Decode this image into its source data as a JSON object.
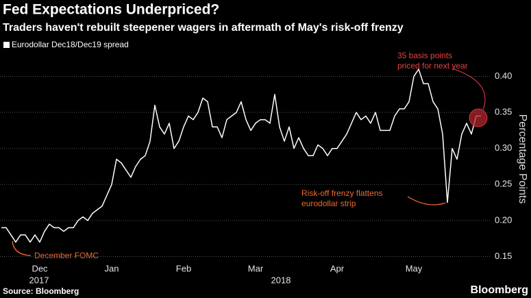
{
  "chart_data": {
    "type": "line",
    "title": "Fed Expectations Underpriced?",
    "subtitle": "Traders haven't rebuilt steepener wagers in aftermath of May's risk-off frenzy",
    "y_axis_label": "Percentage Points",
    "source": "Source: Bloomberg",
    "brand": "Bloomberg",
    "year_labels": [
      "2017",
      "2018"
    ],
    "annotations": [
      "December FOMC",
      "Risk-off frenzy flattens",
      "eurodollar strip",
      "35 basis points",
      "priced for next year"
    ],
    "categories": [
      null,
      null,
      null,
      null,
      null,
      null,
      null,
      null,
      "Dec",
      null,
      null,
      null,
      null,
      null,
      null,
      null,
      null,
      null,
      null,
      null,
      null,
      null,
      null,
      "Jan",
      null,
      null,
      null,
      null,
      null,
      null,
      null,
      null,
      null,
      null,
      null,
      null,
      null,
      null,
      "Feb",
      null,
      null,
      null,
      null,
      null,
      null,
      null,
      null,
      null,
      null,
      null,
      null,
      null,
      null,
      "Mar",
      null,
      null,
      null,
      null,
      null,
      null,
      null,
      null,
      null,
      null,
      null,
      null,
      null,
      null,
      null,
      null,
      "Apr",
      null,
      null,
      null,
      null,
      null,
      null,
      null,
      null,
      null,
      null,
      null,
      null,
      null,
      null,
      null,
      "May",
      null,
      null,
      null,
      null,
      null,
      null,
      null,
      null,
      null,
      null,
      null,
      null,
      null,
      null
    ],
    "series": [
      {
        "name": "Eurodollar Dec18/Dec19 spread",
        "color": "#ffffff",
        "values": [
          0.19,
          0.19,
          0.18,
          0.17,
          0.18,
          0.18,
          0.17,
          0.18,
          0.17,
          0.185,
          0.195,
          0.19,
          0.19,
          0.185,
          0.19,
          0.19,
          0.2,
          0.205,
          0.2,
          0.21,
          0.215,
          0.22,
          0.235,
          0.25,
          0.285,
          0.28,
          0.27,
          0.26,
          0.275,
          0.285,
          0.29,
          0.31,
          0.36,
          0.33,
          0.32,
          0.335,
          0.3,
          0.31,
          0.33,
          0.345,
          0.34,
          0.35,
          0.37,
          0.365,
          0.33,
          0.33,
          0.315,
          0.34,
          0.345,
          0.35,
          0.365,
          0.34,
          0.325,
          0.335,
          0.34,
          0.34,
          0.335,
          0.375,
          0.33,
          0.31,
          0.33,
          0.3,
          0.315,
          0.3,
          0.29,
          0.29,
          0.305,
          0.3,
          0.29,
          0.3,
          0.3,
          0.31,
          0.32,
          0.335,
          0.35,
          0.34,
          0.345,
          0.335,
          0.35,
          0.325,
          0.325,
          0.325,
          0.345,
          0.355,
          0.355,
          0.365,
          0.4,
          0.41,
          0.39,
          0.39,
          0.365,
          0.355,
          0.32,
          0.225,
          0.3,
          0.285,
          0.32,
          0.335,
          0.32,
          0.345,
          0.345
        ]
      }
    ],
    "ylim": [
      0.14,
      0.43
    ],
    "yticks": [
      0.15,
      {
        "value": 0.2,
        "label": "0.20"
      },
      0.25,
      {
        "value": 0.3,
        "label": "0.30"
      },
      0.35,
      {
        "value": 0.4,
        "label": "0.40"
      }
    ],
    "grid": true
  }
}
